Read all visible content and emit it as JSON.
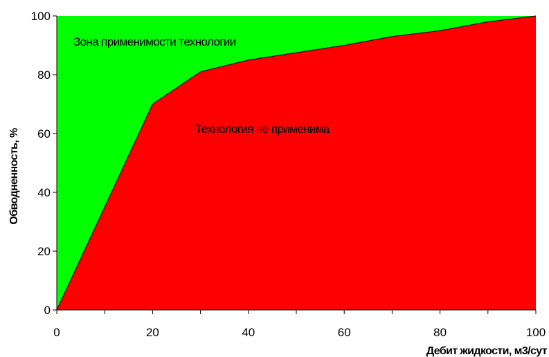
{
  "chart_data": {
    "type": "area",
    "title": "",
    "xlabel": "Дебит жидкости, м3/сут",
    "ylabel": "Обводненность, %",
    "xlim": [
      0,
      100
    ],
    "ylim": [
      0,
      100
    ],
    "x_ticks": [
      "0",
      "20",
      "40",
      "60",
      "80",
      "100"
    ],
    "y_ticks": [
      "0",
      "20",
      "40",
      "60",
      "80",
      "100"
    ],
    "grid": false,
    "legend": "none",
    "boundary": {
      "x": [
        0,
        20,
        30,
        40,
        50,
        60,
        70,
        80,
        90,
        100
      ],
      "y": [
        0,
        70,
        81,
        85,
        87.5,
        90,
        93,
        95,
        98,
        100
      ]
    },
    "regions": [
      {
        "label": "Зона применимости технологии",
        "color": "#00ff00",
        "position": "above-boundary"
      },
      {
        "label": "Технология не применима",
        "color": "#ff0000",
        "position": "below-boundary"
      }
    ]
  }
}
